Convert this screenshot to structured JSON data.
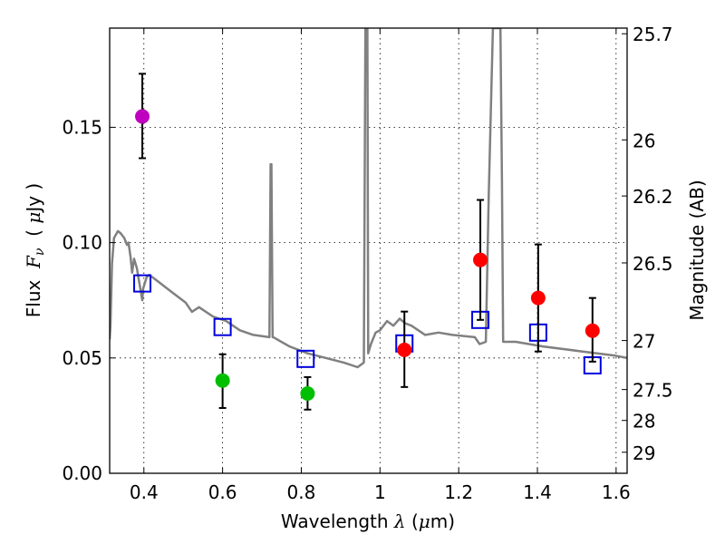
{
  "chart_data": {
    "type": "scatter",
    "title": "",
    "xlabel": "Wavelength  λ (μm)",
    "xlabel_parts": {
      "prefix": "Wavelength  ",
      "symbol": "λ",
      "suffix": " (",
      "mu": "μ",
      "unit": "m)"
    },
    "ylabel": "Flux  Fν  ( μJy )",
    "ylabel_parts": {
      "prefix": "Flux  ",
      "symbol": "F",
      "sub": "ν",
      "mid": "  ( ",
      "mu": "μ",
      "unit": "Jy )"
    },
    "y2label": "Magnitude (AB)",
    "xlim": [
      0.313,
      1.628
    ],
    "ylim": [
      0.0,
      0.193
    ],
    "grid": true,
    "xticks": [
      0.4,
      0.6,
      0.8,
      1.0,
      1.2,
      1.4,
      1.6
    ],
    "xtick_labels": [
      "0.4",
      "0.6",
      "0.8",
      "1",
      "1.2",
      "1.4",
      "1.6"
    ],
    "yticks": [
      0.0,
      0.05,
      0.1,
      0.15
    ],
    "ytick_labels": [
      "0.00",
      "0.05",
      "0.10",
      "0.15"
    ],
    "y2ticks": [
      25.7,
      26,
      26.2,
      26.5,
      27,
      27.5,
      28,
      29
    ],
    "y2tick_labels": [
      "25.7",
      "26",
      "26.2",
      "26.5",
      "27",
      "27.5",
      "28",
      "29"
    ],
    "y2_zeropoint_ab": 23.9,
    "colors": {
      "spectrum": "#808080",
      "model_photometry": "#0000dd",
      "purple_point": "#bf00bf",
      "green_point": "#00bf00",
      "red_point": "#ff0000",
      "errorbar": "#000000"
    },
    "series": [
      {
        "name": "spectrum",
        "kind": "line",
        "x": [
          0.313,
          0.315,
          0.319,
          0.324,
          0.334,
          0.341,
          0.35,
          0.357,
          0.361,
          0.366,
          0.37,
          0.375,
          0.382,
          0.389,
          0.396,
          0.398,
          0.407,
          0.414,
          0.437,
          0.46,
          0.483,
          0.506,
          0.522,
          0.54,
          0.575,
          0.609,
          0.644,
          0.678,
          0.719,
          0.722,
          0.724,
          0.727,
          0.729,
          0.77,
          0.816,
          0.862,
          0.908,
          0.943,
          0.959,
          0.963,
          0.966,
          0.968,
          0.97,
          0.977,
          0.989,
          1.0,
          1.018,
          1.034,
          1.05,
          1.064,
          1.08,
          1.115,
          1.149,
          1.184,
          1.241,
          1.253,
          1.269,
          1.276,
          1.287,
          1.306,
          1.31,
          1.313,
          1.345,
          1.414,
          1.506,
          1.598,
          1.628
        ],
        "y": [
          0.058,
          0.064,
          0.091,
          0.102,
          0.105,
          0.104,
          0.102,
          0.099,
          0.1,
          0.094,
          0.087,
          0.093,
          0.089,
          0.082,
          0.075,
          0.08,
          0.085,
          0.086,
          0.083,
          0.08,
          0.077,
          0.074,
          0.07,
          0.072,
          0.068,
          0.066,
          0.062,
          0.06,
          0.059,
          0.134,
          0.134,
          0.059,
          0.059,
          0.055,
          0.052,
          0.05,
          0.048,
          0.046,
          0.048,
          0.193,
          0.193,
          0.193,
          0.052,
          0.056,
          0.061,
          0.062,
          0.066,
          0.064,
          0.067,
          0.065,
          0.064,
          0.06,
          0.061,
          0.06,
          0.059,
          0.056,
          0.057,
          0.119,
          0.193,
          0.193,
          0.126,
          0.057,
          0.057,
          0.055,
          0.053,
          0.051,
          0.05
        ]
      },
      {
        "name": "model_photometry",
        "kind": "open-square",
        "x": [
          0.396,
          0.6,
          0.811,
          1.062,
          1.255,
          1.402,
          1.54
        ],
        "y": [
          0.0823,
          0.0634,
          0.0496,
          0.0563,
          0.0665,
          0.061,
          0.0468
        ]
      },
      {
        "name": "observed_purple",
        "kind": "filled-circle-errorbar",
        "x": [
          0.396
        ],
        "y": [
          0.1547
        ],
        "yerr_low": [
          0.1366
        ],
        "yerr_high": [
          0.1732
        ]
      },
      {
        "name": "observed_green",
        "kind": "filled-circle-errorbar",
        "x": [
          0.6,
          0.816
        ],
        "y": [
          0.0402,
          0.0346
        ],
        "yerr_low": [
          0.0283,
          0.0276
        ],
        "yerr_high": [
          0.0516,
          0.0417
        ]
      },
      {
        "name": "observed_red",
        "kind": "filled-circle-errorbar",
        "x": [
          1.062,
          1.255,
          1.402,
          1.54
        ],
        "y": [
          0.0535,
          0.0925,
          0.076,
          0.0618
        ],
        "yerr_low": [
          0.0374,
          0.0665,
          0.0528,
          0.0484
        ],
        "yerr_high": [
          0.0701,
          0.1185,
          0.0992,
          0.076
        ]
      }
    ]
  }
}
